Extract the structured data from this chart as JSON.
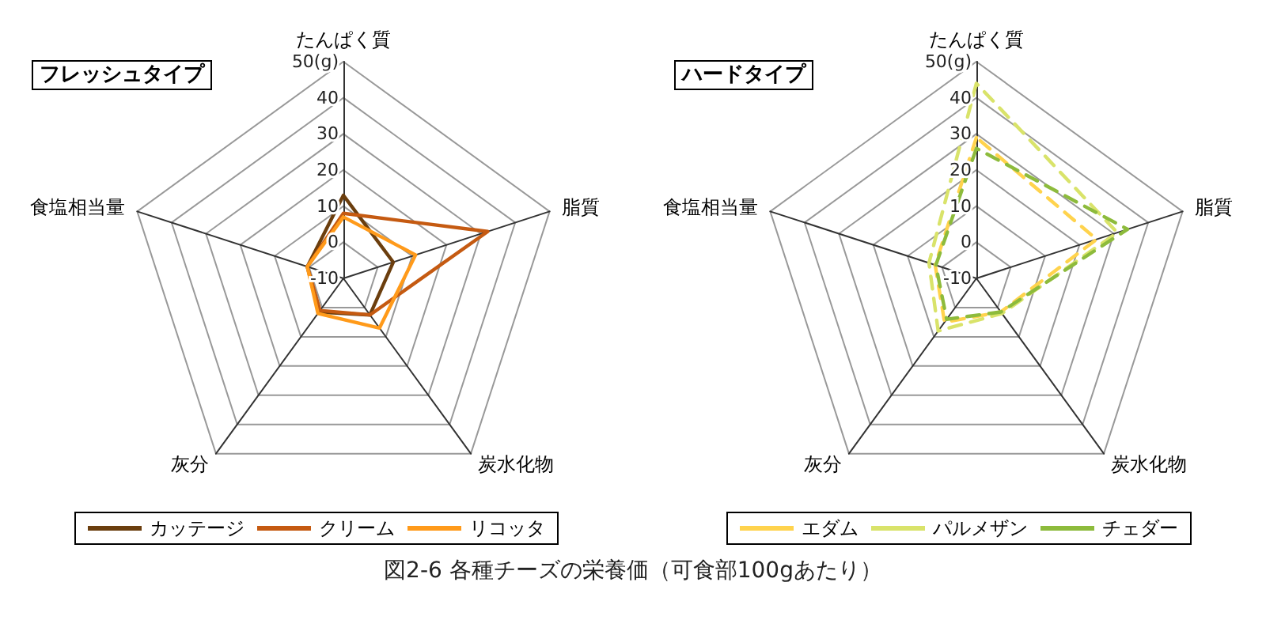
{
  "chart_data": [
    {
      "type": "radar",
      "title": "フレッシュタイプ",
      "categories": [
        "たんぱく質",
        "脂質",
        "炭水化物",
        "灰分",
        "食塩相当量"
      ],
      "series": [
        {
          "name": "カッテージ",
          "color": "#6b3e0e",
          "values": [
            13,
            4.5,
            2.5,
            1.5,
            0.5
          ]
        },
        {
          "name": "クリーム",
          "color": "#c55a11",
          "values": [
            8,
            32,
            2.5,
            1,
            0.5
          ]
        },
        {
          "name": "リコッタ",
          "color": "#ff9a1a",
          "values": [
            7,
            11,
            7,
            2,
            0.5
          ]
        }
      ],
      "ylim": [
        -10,
        50
      ],
      "yticks": [
        -10,
        0,
        10,
        20,
        30,
        40,
        {
          "value": 50,
          "label": "50(g)"
        }
      ],
      "legend": "bottom",
      "marker": "none",
      "line_style": "solid",
      "annotations": [
        "図2-6 各種チーズの栄養価（可食部100gあたり）"
      ]
    },
    {
      "type": "radar",
      "title": "ハードタイプ",
      "categories": [
        "たんぱく質",
        "脂質",
        "炭水化物",
        "灰分",
        "食塩相当量"
      ],
      "series": [
        {
          "name": "エダム",
          "color": "#ffd34d",
          "values": [
            29,
            25,
            1.5,
            5,
            2
          ]
        },
        {
          "name": "パルメザン",
          "color": "#d9e36a",
          "values": [
            44,
            31,
            2,
            8,
            3.8
          ]
        },
        {
          "name": "チェダー",
          "color": "#8dbb3c",
          "values": [
            26,
            34,
            1.5,
            4,
            1.8
          ]
        }
      ],
      "ylim": [
        -10,
        50
      ],
      "yticks": [
        -10,
        0,
        10,
        20,
        30,
        40,
        {
          "value": 50,
          "label": "50(g)"
        }
      ],
      "legend": "bottom",
      "marker": "none",
      "line_style": "dashed"
    }
  ]
}
